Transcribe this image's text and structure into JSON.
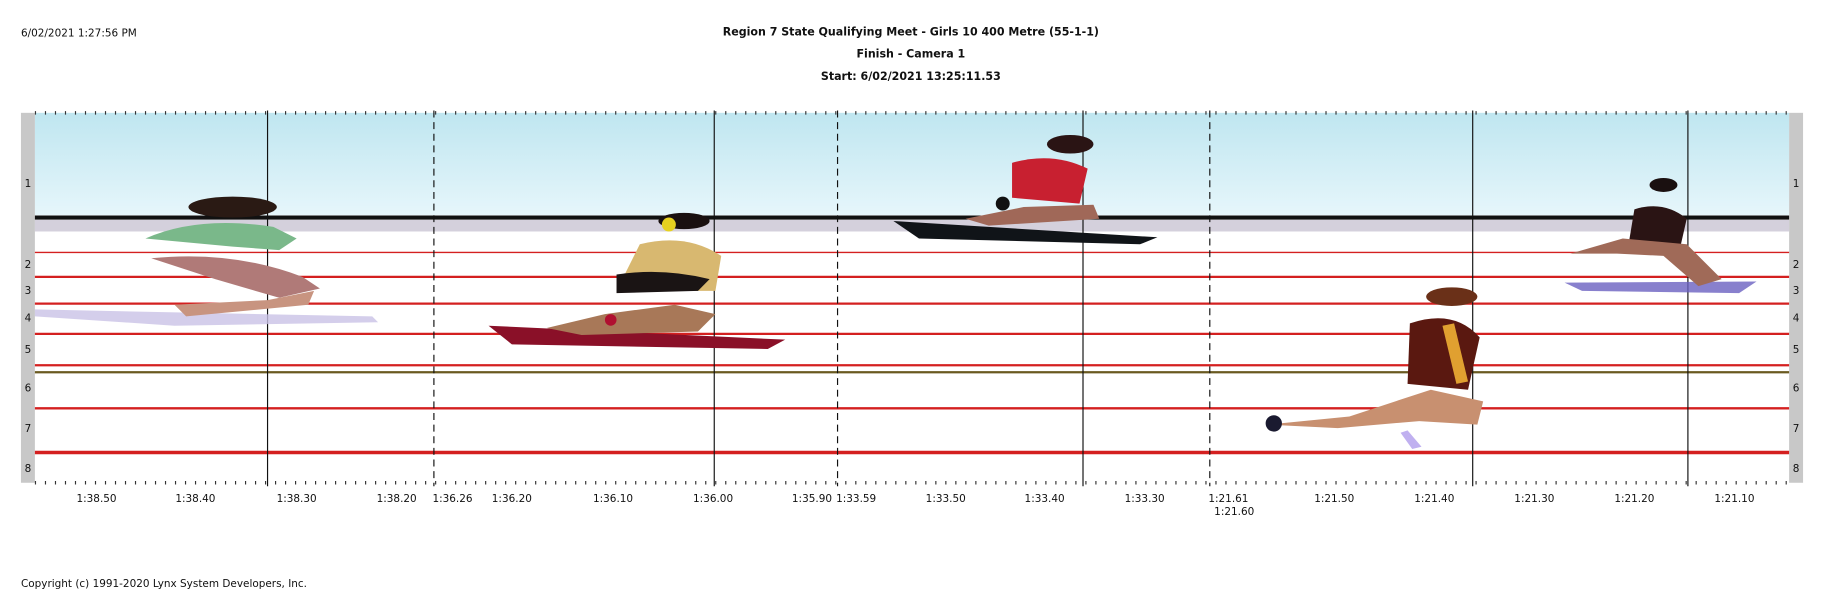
{
  "header": {
    "timestamp": "6/02/2021 1:27:56 PM",
    "title": "Region 7 State Qualifying Meet - Girls 10 400 Metre (55-1-1)",
    "subtitle": "Finish - Camera 1",
    "start": "Start: 6/02/2021 13:25:11.53"
  },
  "lanes": [
    "1",
    "2",
    "3",
    "4",
    "5",
    "6",
    "7",
    "8"
  ],
  "time_labels": [
    "1:38.50",
    "1:38.40",
    "1:38.30",
    "1:38.20",
    "1:36.26",
    "1:36.20",
    "1:36.10",
    "1:36.00",
    "1:35.90",
    "1:33.59",
    "1:33.50",
    "1:33.40",
    "1:33.30",
    "1:21.61",
    "1:21.60",
    "1:21.50",
    "1:21.40",
    "1:21.30",
    "1:21.20",
    "1:21.10"
  ],
  "footer": {
    "copyright": "Copyright (c) 1991-2020 Lynx System Developers, Inc."
  }
}
